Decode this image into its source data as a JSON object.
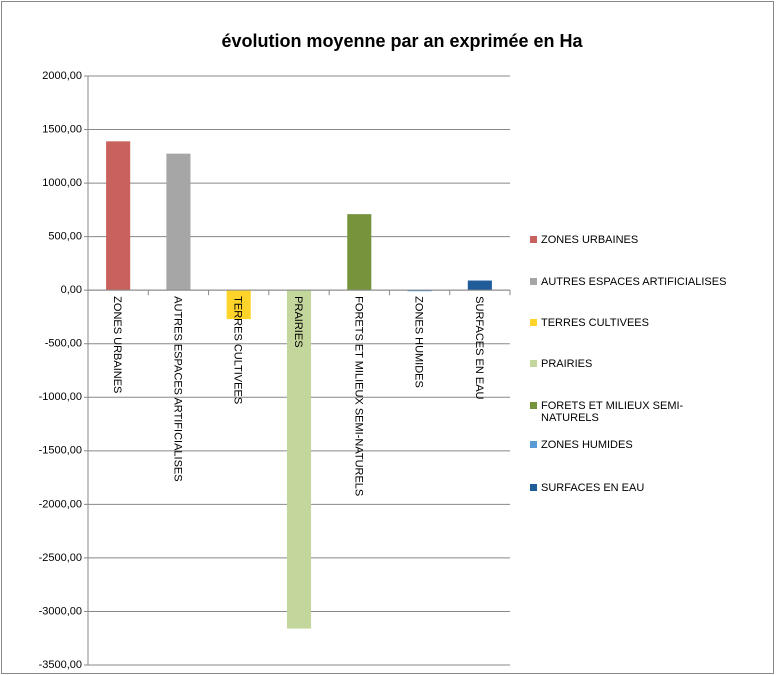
{
  "chart_data": {
    "type": "bar",
    "title": "évolution moyenne par an exprimée en Ha",
    "categories": [
      "ZONES URBAINES",
      "AUTRES ESPACES ARTIFICIALISES",
      "TERRES CULTIVEES",
      "PRAIRIES",
      "FORETS ET MILIEUX SEMI-NATURELS",
      "ZONES HUMIDES",
      "SURFACES EN EAU"
    ],
    "values": [
      1390,
      1275,
      -270,
      -3160,
      710,
      -10,
      90
    ],
    "colors": [
      "#c9625f",
      "#a6a6a6",
      "#ffd42a",
      "#c3d69b",
      "#77933c",
      "#5b9bd5",
      "#1f5c99"
    ],
    "ylim": [
      -3500,
      2000
    ],
    "yticks": [
      {
        "value": -3500,
        "label": "-3500,00"
      },
      {
        "value": -3000,
        "label": "-3000,00"
      },
      {
        "value": -2500,
        "label": "-2500,00"
      },
      {
        "value": -2000,
        "label": "-2000,00"
      },
      {
        "value": -1500,
        "label": "-1500,00"
      },
      {
        "value": -1000,
        "label": "-1000,00"
      },
      {
        "value": -500,
        "label": "-500,00"
      },
      {
        "value": 0,
        "label": "0,00"
      },
      {
        "value": 500,
        "label": "500,00"
      },
      {
        "value": 1000,
        "label": "1000,00"
      },
      {
        "value": 1500,
        "label": "1500,00"
      },
      {
        "value": 2000,
        "label": "2000,00"
      }
    ],
    "grid": true,
    "legend": "right"
  }
}
